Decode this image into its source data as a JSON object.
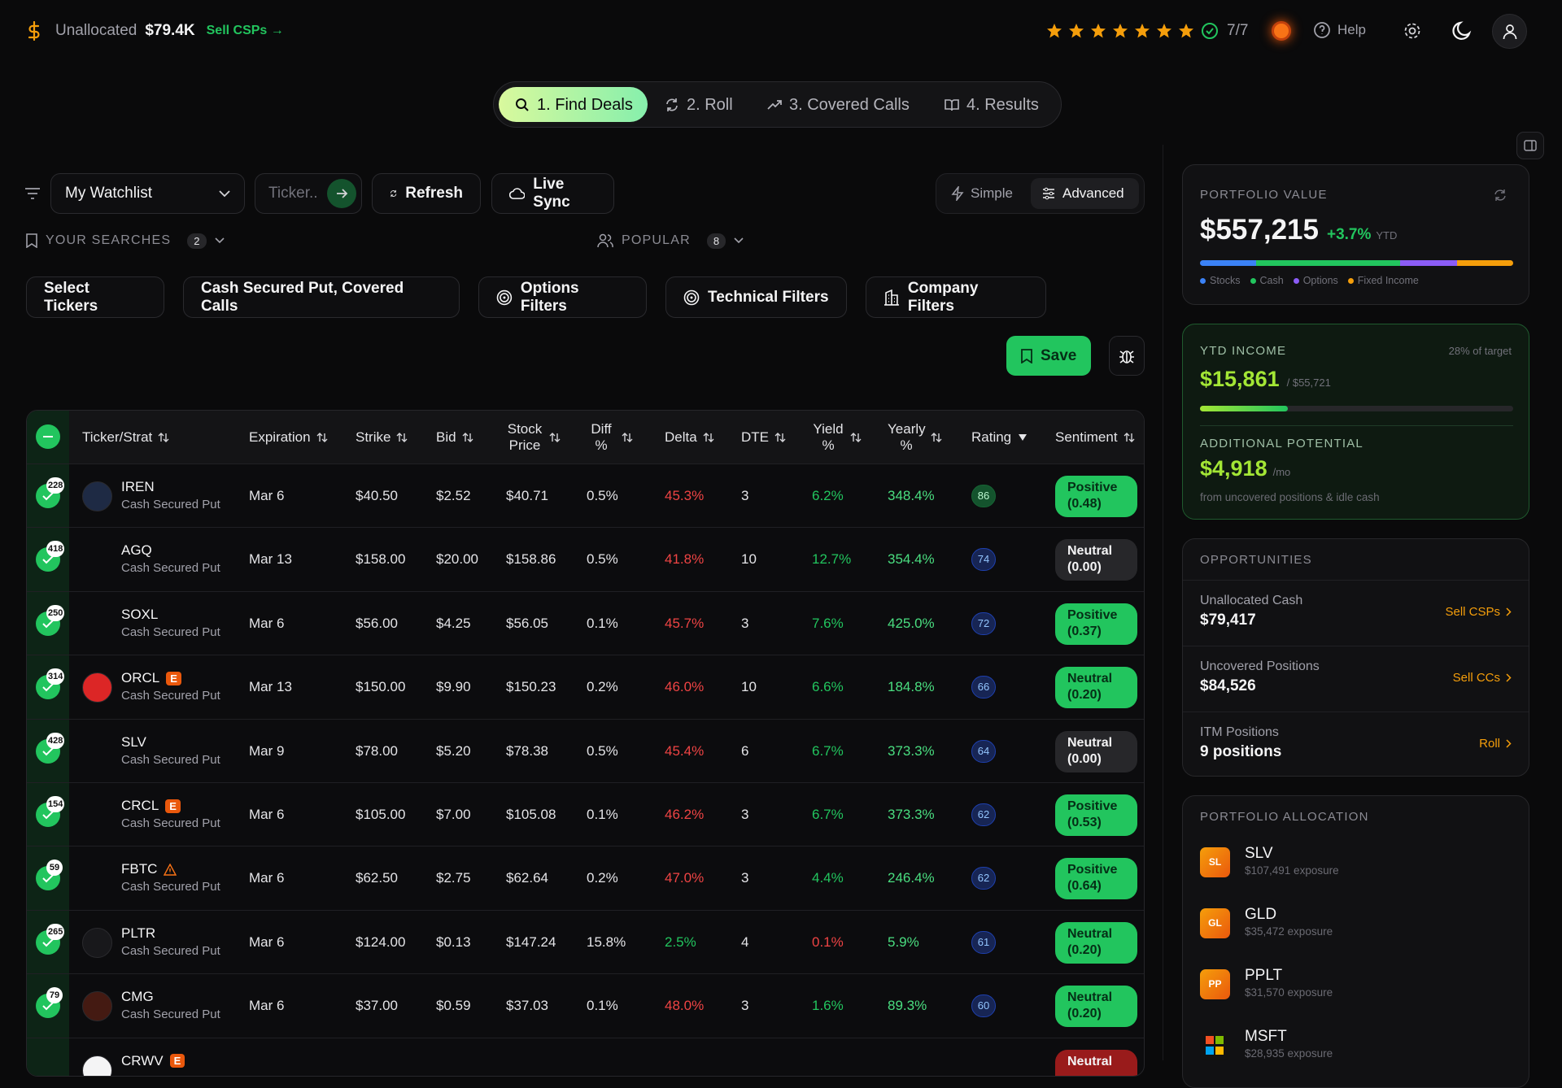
{
  "header": {
    "unallocated_label": "Unallocated",
    "unallocated_value": "$79.4K",
    "sell_link": "Sell CSPs →",
    "stars": 7,
    "rating": "7/7",
    "help": "Help"
  },
  "tabs": [
    "1. Find Deals",
    "2. Roll",
    "3. Covered Calls",
    "4. Results"
  ],
  "toolbar": {
    "watchlist": "My Watchlist",
    "ticker_placeholder": "Ticker..",
    "refresh": "Refresh",
    "live_sync": "Live Sync",
    "mode_simple": "Simple",
    "mode_advanced": "Advanced"
  },
  "searches": {
    "yours": {
      "label": "YOUR SEARCHES",
      "count": 2
    },
    "popular": {
      "label": "POPULAR",
      "count": 8
    }
  },
  "filters": [
    "Select Tickers",
    "Cash Secured Put, Covered Calls",
    "Options Filters",
    "Technical Filters",
    "Company Filters"
  ],
  "save": "Save",
  "table": {
    "columns": [
      "Ticker/Strat",
      "Expiration",
      "Strike",
      "Bid",
      "Stock Price",
      "Diff %",
      "Delta",
      "DTE",
      "Yield %",
      "Yearly %",
      "Rating",
      "Sentiment"
    ],
    "rows": [
      {
        "badge": 228,
        "ticker": "IREN",
        "strategy": "Cash Secured Put",
        "logo_color": "#1e2a44",
        "expiration": "Mar 6",
        "strike": "$40.50",
        "bid": "$2.52",
        "stock_price": "$40.71",
        "diff": "0.5%",
        "delta": "45.3%",
        "delta_tone": "red",
        "dte": 3,
        "yield": "6.2%",
        "yield_tone": "green",
        "yearly": "348.4%",
        "rating": 86,
        "rating_tone": "green",
        "sentiment": "Positive (0.48)",
        "sentiment_tone": "green"
      },
      {
        "badge": 418,
        "ticker": "AGQ",
        "strategy": "Cash Secured Put",
        "expiration": "Mar 13",
        "strike": "$158.00",
        "bid": "$20.00",
        "stock_price": "$158.86",
        "diff": "0.5%",
        "delta": "41.8%",
        "delta_tone": "red",
        "dte": 10,
        "yield": "12.7%",
        "yield_tone": "green",
        "yearly": "354.4%",
        "rating": 74,
        "rating_tone": "blue",
        "sentiment": "Neutral (0.00)",
        "sentiment_tone": "dark"
      },
      {
        "badge": 250,
        "ticker": "SOXL",
        "strategy": "Cash Secured Put",
        "expiration": "Mar 6",
        "strike": "$56.00",
        "bid": "$4.25",
        "stock_price": "$56.05",
        "diff": "0.1%",
        "delta": "45.7%",
        "delta_tone": "red",
        "dte": 3,
        "yield": "7.6%",
        "yield_tone": "green",
        "yearly": "425.0%",
        "rating": 72,
        "rating_tone": "blue",
        "sentiment": "Positive (0.37)",
        "sentiment_tone": "green"
      },
      {
        "badge": 314,
        "ticker": "ORCL",
        "flag": "E",
        "strategy": "Cash Secured Put",
        "logo_color": "#dc2626",
        "expiration": "Mar 13",
        "strike": "$150.00",
        "bid": "$9.90",
        "stock_price": "$150.23",
        "diff": "0.2%",
        "delta": "46.0%",
        "delta_tone": "red",
        "dte": 10,
        "yield": "6.6%",
        "yield_tone": "green",
        "yearly": "184.8%",
        "rating": 66,
        "rating_tone": "blue",
        "sentiment": "Neutral (0.20)",
        "sentiment_tone": "green"
      },
      {
        "badge": 428,
        "ticker": "SLV",
        "strategy": "Cash Secured Put",
        "expiration": "Mar 9",
        "strike": "$78.00",
        "bid": "$5.20",
        "stock_price": "$78.38",
        "diff": "0.5%",
        "delta": "45.4%",
        "delta_tone": "red",
        "dte": 6,
        "yield": "6.7%",
        "yield_tone": "green",
        "yearly": "373.3%",
        "rating": 64,
        "rating_tone": "blue",
        "sentiment": "Neutral (0.00)",
        "sentiment_tone": "dark"
      },
      {
        "badge": 154,
        "ticker": "CRCL",
        "flag": "E",
        "strategy": "Cash Secured Put",
        "expiration": "Mar 6",
        "strike": "$105.00",
        "bid": "$7.00",
        "stock_price": "$105.08",
        "diff": "0.1%",
        "delta": "46.2%",
        "delta_tone": "red",
        "dte": 3,
        "yield": "6.7%",
        "yield_tone": "green",
        "yearly": "373.3%",
        "rating": 62,
        "rating_tone": "blue",
        "sentiment": "Positive (0.53)",
        "sentiment_tone": "green"
      },
      {
        "badge": 59,
        "ticker": "FBTC",
        "warning": true,
        "strategy": "Cash Secured Put",
        "expiration": "Mar 6",
        "strike": "$62.50",
        "bid": "$2.75",
        "stock_price": "$62.64",
        "diff": "0.2%",
        "delta": "47.0%",
        "delta_tone": "red",
        "dte": 3,
        "yield": "4.4%",
        "yield_tone": "green",
        "yearly": "246.4%",
        "rating": 62,
        "rating_tone": "blue",
        "sentiment": "Positive (0.64)",
        "sentiment_tone": "green"
      },
      {
        "badge": 265,
        "ticker": "PLTR",
        "strategy": "Cash Secured Put",
        "logo_color": "#18181b",
        "expiration": "Mar 6",
        "strike": "$124.00",
        "bid": "$0.13",
        "stock_price": "$147.24",
        "diff": "15.8%",
        "delta": "2.5%",
        "delta_tone": "green",
        "dte": 4,
        "yield": "0.1%",
        "yield_tone": "red",
        "yearly": "5.9%",
        "rating": 61,
        "rating_tone": "blue",
        "sentiment": "Neutral (0.20)",
        "sentiment_tone": "green"
      },
      {
        "badge": 79,
        "ticker": "CMG",
        "strategy": "Cash Secured Put",
        "logo_color": "#441a12",
        "expiration": "Mar 6",
        "strike": "$37.00",
        "bid": "$0.59",
        "stock_price": "$37.03",
        "diff": "0.1%",
        "delta": "48.0%",
        "delta_tone": "red",
        "dte": 3,
        "yield": "1.6%",
        "yield_tone": "green",
        "yearly": "89.3%",
        "rating": 60,
        "rating_tone": "blue",
        "sentiment": "Neutral (0.20)",
        "sentiment_tone": "green"
      },
      {
        "ticker": "CRWV",
        "flag": "E",
        "logo_color": "#f4f4f5",
        "sentiment": "Neutral",
        "sentiment_tone": "red"
      }
    ]
  },
  "sidebar": {
    "portfolio": {
      "label": "PORTFOLIO VALUE",
      "value": "$557,215",
      "change": "+3.7%",
      "change_suffix": "YTD",
      "allocation": [
        {
          "name": "Stocks",
          "color": "#3b82f6",
          "value": 18
        },
        {
          "name": "Cash",
          "color": "#22c55e",
          "value": 46
        },
        {
          "name": "Options",
          "color": "#8b5cf6",
          "value": 18
        },
        {
          "name": "Fixed Income",
          "color": "#f59e0b",
          "value": 18
        }
      ]
    },
    "ytd": {
      "label": "YTD INCOME",
      "progress": {
        "value": 28,
        "label": "28% of target"
      },
      "value": "$15,861",
      "target": "/ $55,721",
      "potential_label": "ADDITIONAL POTENTIAL",
      "potential_value": "$4,918",
      "potential_unit": "/mo",
      "potential_note": "from uncovered positions & idle cash"
    },
    "opportunities": {
      "title": "OPPORTUNITIES",
      "items": [
        {
          "label": "Unallocated Cash",
          "value": "$79,417",
          "action": "Sell CSPs"
        },
        {
          "label": "Uncovered Positions",
          "value": "$84,526",
          "action": "Sell CCs"
        },
        {
          "label": "ITM Positions",
          "value": "9 positions",
          "action": "Roll"
        }
      ]
    },
    "allocation": {
      "title": "PORTFOLIO ALLOCATION",
      "items": [
        {
          "abbr": "SL",
          "ticker": "SLV",
          "exposure": "$107,491 exposure"
        },
        {
          "abbr": "GL",
          "ticker": "GLD",
          "exposure": "$35,472 exposure"
        },
        {
          "abbr": "PP",
          "ticker": "PPLT",
          "exposure": "$31,570 exposure"
        },
        {
          "ticker": "MSFT",
          "exposure": "$28,935 exposure"
        }
      ]
    }
  }
}
